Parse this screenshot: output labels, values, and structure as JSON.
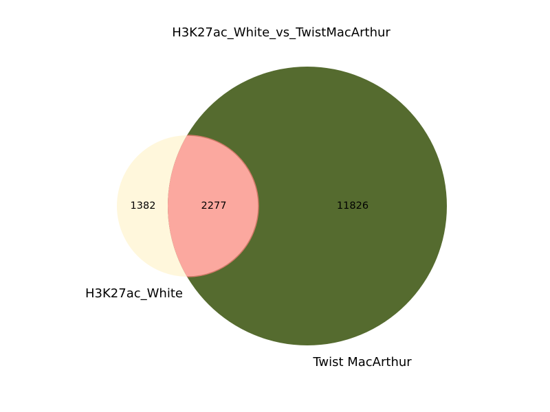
{
  "chart_data": {
    "type": "venn",
    "title": "H3K27ac_White_vs_TwistMacArthur",
    "sets": [
      {
        "name": "H3K27ac_White",
        "only": 1382,
        "color": "#fff7dc"
      },
      {
        "name": "Twist MacArthur",
        "only": 11826,
        "color": "#556b2f"
      }
    ],
    "intersection": {
      "value": 2277,
      "color": "#fba89f",
      "edge_color": "#d07a68"
    },
    "labels": {
      "a_only": "1382",
      "ab": "2277",
      "b_only": "11826"
    }
  }
}
